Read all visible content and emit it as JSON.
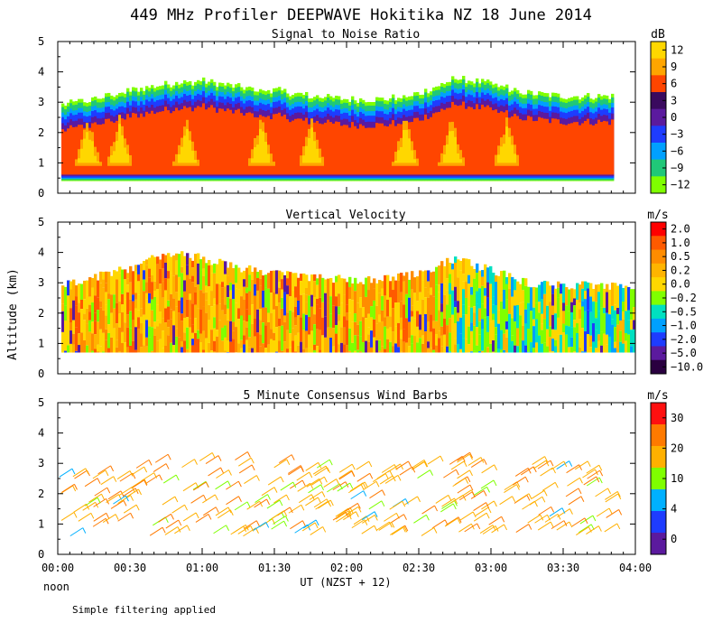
{
  "title": "449 MHz Profiler DEEPWAVE Hokitika NZ 18 June 2014",
  "ylabel": "Altitude (km)",
  "xlabel": "UT  (NZST + 12)",
  "noon_label": "noon",
  "footnote": "Simple filtering applied",
  "time_ticks": [
    "00:00",
    "00:30",
    "01:00",
    "01:30",
    "02:00",
    "02:30",
    "03:00",
    "03:30",
    "04:00"
  ],
  "chart_data": [
    {
      "type": "heatmap",
      "title": "Signal to Noise Ratio",
      "unit": "dB",
      "x_range_hours": [
        0,
        4
      ],
      "ylim": [
        0,
        5
      ],
      "yticks": [
        "0",
        "1",
        "2",
        "3",
        "4",
        "5"
      ],
      "colorbar": {
        "labels": [
          "12",
          "9",
          "6",
          "3",
          "0",
          "−3",
          "−6",
          "−9",
          "−12"
        ],
        "colors": [
          "#ffd700",
          "#ffa500",
          "#ff4500",
          "#3a0a5e",
          "#5b1a9e",
          "#1e3cff",
          "#00a0ff",
          "#20c878",
          "#7fff00"
        ]
      },
      "profile": {
        "hours": [
          0.0,
          0.25,
          0.5,
          0.75,
          1.0,
          1.25,
          1.5,
          1.75,
          2.0,
          2.25,
          2.5,
          2.75,
          3.0,
          3.25,
          3.5,
          3.75
        ],
        "top_km": [
          2.9,
          3.1,
          3.4,
          3.6,
          3.7,
          3.5,
          3.4,
          3.2,
          3.1,
          3.1,
          3.3,
          3.8,
          3.6,
          3.3,
          3.2,
          3.2
        ]
      }
    },
    {
      "type": "heatmap",
      "title": "Vertical Velocity",
      "unit": "m/s",
      "x_range_hours": [
        0,
        4
      ],
      "ylim": [
        0,
        5
      ],
      "yticks": [
        "0",
        "1",
        "2",
        "3",
        "4",
        "5"
      ],
      "colorbar": {
        "labels": [
          "2.0",
          "1.0",
          "0.5",
          "0.2",
          "0.0",
          "−0.2",
          "−0.5",
          "−1.0",
          "−2.0",
          "−5.0",
          "−10.0"
        ],
        "colors": [
          "#ff0000",
          "#ff5a00",
          "#ff8c00",
          "#ffb400",
          "#ffd700",
          "#7fff00",
          "#00e0c0",
          "#00a0ff",
          "#1e3cff",
          "#5b1a9e",
          "#2a0040"
        ]
      },
      "profile": {
        "hours": [
          0.0,
          0.25,
          0.5,
          0.75,
          1.0,
          1.25,
          1.5,
          1.75,
          2.0,
          2.25,
          2.5,
          2.75,
          3.0,
          3.25,
          3.5,
          3.75
        ],
        "top_km": [
          2.9,
          3.2,
          3.5,
          4.0,
          3.8,
          3.5,
          3.3,
          3.2,
          3.1,
          3.1,
          3.3,
          3.8,
          3.4,
          3.0,
          2.9,
          2.9
        ]
      }
    },
    {
      "type": "wind_barbs",
      "title": "5 Minute Consensus Wind Barbs",
      "unit": "m/s",
      "x_range_hours": [
        0,
        4
      ],
      "ylim": [
        0,
        5
      ],
      "yticks": [
        "0",
        "1",
        "2",
        "3",
        "4",
        "5"
      ],
      "colorbar": {
        "labels": [
          "30",
          "20",
          "10",
          "4",
          "0"
        ],
        "colors": [
          "#ff1010",
          "#ff7a00",
          "#ffb000",
          "#7fff00",
          "#00b0ff",
          "#1e3cff",
          "#5b1a9e"
        ]
      },
      "typical_speed_ms": 20,
      "typical_direction": "westerly"
    }
  ]
}
